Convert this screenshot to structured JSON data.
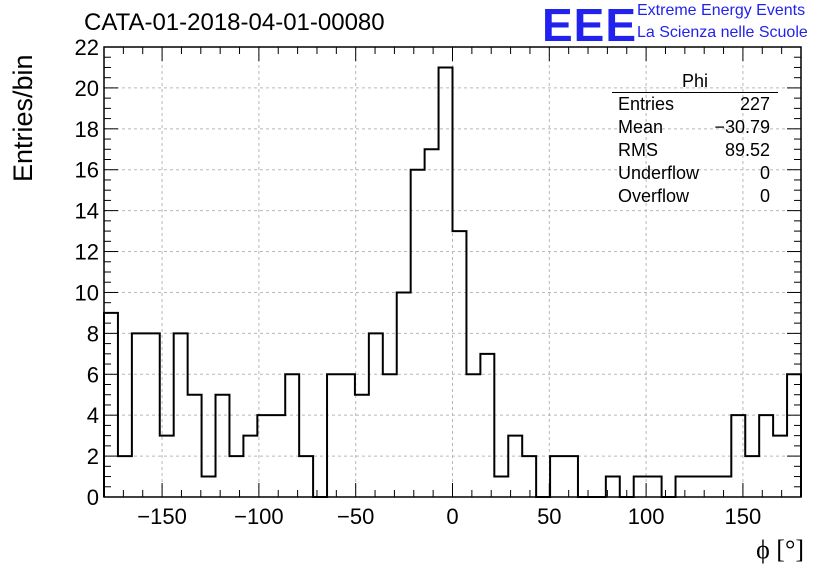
{
  "title": "CATA-01-2018-04-01-00080",
  "logo": {
    "letters": "EEE",
    "line1": "Extreme Energy Events",
    "line2": "La Scienza nelle Scuole",
    "color": "#2222ee"
  },
  "stats_box": {
    "title": "Phi",
    "rows": [
      {
        "label": "Entries",
        "value": "227"
      },
      {
        "label": "Mean",
        "value": "−30.79"
      },
      {
        "label": "RMS",
        "value": "89.52"
      },
      {
        "label": "Underflow",
        "value": "0"
      },
      {
        "label": "Overflow",
        "value": "0"
      }
    ]
  },
  "chart_data": {
    "type": "bar",
    "histogram_style": "step",
    "title": "CATA-01-2018-04-01-00080",
    "xlabel": "ϕ [°]",
    "ylabel": "Entries/bin",
    "xlim": [
      -180,
      180
    ],
    "ylim": [
      0,
      22
    ],
    "bin_width": 7.2,
    "bin_edges_start": -180,
    "values": [
      9,
      2,
      8,
      8,
      3,
      8,
      5,
      1,
      5,
      2,
      3,
      4,
      4,
      6,
      2,
      0,
      6,
      6,
      5,
      8,
      6,
      10,
      16,
      17,
      21,
      13,
      6,
      7,
      1,
      3,
      2,
      0,
      2,
      2,
      0,
      0,
      1,
      0,
      1,
      1,
      0,
      1,
      1,
      1,
      1,
      4,
      2,
      4,
      3,
      6
    ],
    "x_ticks": [
      -150,
      -100,
      -50,
      0,
      50,
      100,
      150
    ],
    "x_tick_labels": [
      "−150",
      "−100",
      "−50",
      "0",
      "50",
      "100",
      "150"
    ],
    "y_ticks": [
      0,
      2,
      4,
      6,
      8,
      10,
      12,
      14,
      16,
      18,
      20,
      22
    ],
    "grid": true
  }
}
